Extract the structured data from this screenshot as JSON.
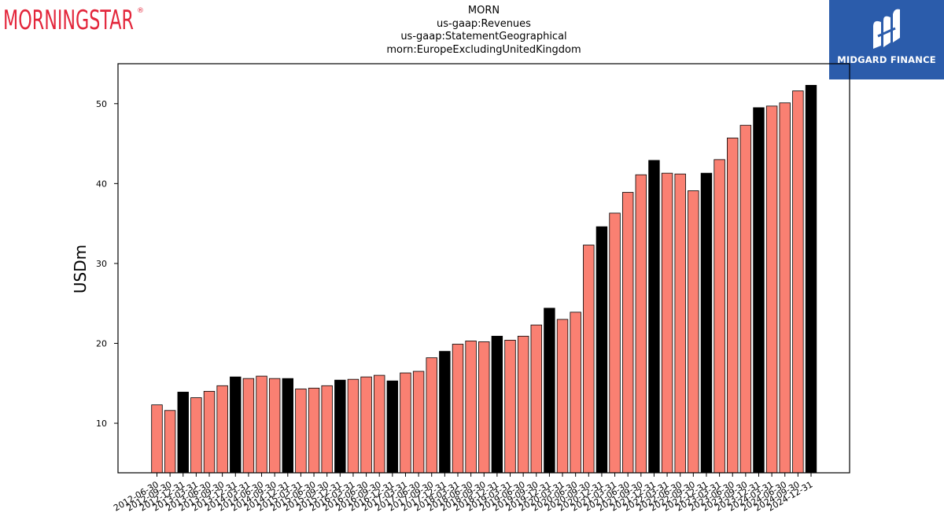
{
  "header": {
    "morningstar_logo": "MORNINGSTAR",
    "midgard_logo": "MIDGARD FINANCE"
  },
  "colors": {
    "bar_default": "#fa8072",
    "bar_highlight": "#000000",
    "morningstar_red": "#e3263b",
    "midgard_blue": "#2b5cab"
  },
  "chart_data": {
    "type": "bar",
    "title": [
      "MORN",
      "us-gaap:Revenues",
      "us-gaap:StatementGeographical",
      "morn:EuropeExcludingUnitedKingdom"
    ],
    "xlabel": "",
    "ylabel": "USDm",
    "ylim": [
      3.8,
      55
    ],
    "yticks": [
      10,
      20,
      30,
      40,
      50
    ],
    "grid": false,
    "categories": [
      "2012-06-30",
      "2012-09-30",
      "2012-12-31",
      "2013-03-31",
      "2013-06-30",
      "2013-09-30",
      "2013-12-31",
      "2014-03-31",
      "2014-06-30",
      "2014-09-30",
      "2014-12-31",
      "2015-03-31",
      "2015-06-30",
      "2015-09-30",
      "2015-12-31",
      "2016-03-31",
      "2016-06-30",
      "2016-09-30",
      "2016-12-31",
      "2017-03-31",
      "2017-06-30",
      "2017-09-30",
      "2017-12-31",
      "2018-03-31",
      "2018-06-30",
      "2018-09-30",
      "2018-12-31",
      "2019-03-31",
      "2019-06-30",
      "2019-09-30",
      "2019-12-31",
      "2020-03-31",
      "2020-06-30",
      "2020-09-30",
      "2020-12-31",
      "2021-03-31",
      "2021-06-30",
      "2021-09-30",
      "2021-12-31",
      "2022-03-31",
      "2022-06-30",
      "2022-09-30",
      "2022-12-31",
      "2023-03-31",
      "2023-06-30",
      "2023-09-30",
      "2023-12-31",
      "2024-03-31",
      "2024-06-30",
      "2024-09-30",
      "2024-12-31"
    ],
    "tick_labels": [
      "2012-06-30",
      "2012-09-30",
      "2012-12-31",
      "2013-03-31",
      "2013-06-30",
      "2013-09-30",
      "2013-12-31",
      "2014-03-31",
      "2014-06-30",
      "2014-09-30",
      "2014-12-31",
      "2015-03-31",
      "2015-06-30",
      "2015-09-30",
      "2015-12-31",
      "2016-03-31",
      "2016-06-30",
      "2016-09-30",
      "2016-12-31",
      "2017-03-31",
      "2017-06-30",
      "2017-09-30",
      "2017-12-31",
      "2018-03-31",
      "2018-06-30",
      "2018-09-30",
      "2018-12-31",
      "2019-03-31",
      "2019-06-30",
      "2019-09-30",
      "2019-12-31",
      "2020-03-31",
      "2020-06-30",
      "2020-09-30",
      "2020-12-31",
      "2021-03-31",
      "2021-06-30",
      "2021-09-30",
      "2021-12-31",
      "2022-03-31",
      "2022-06-30",
      "2022-09-30",
      "2022-12-31",
      "2023-03-31",
      "2023-06-30",
      "2023-09-30",
      "2023-12-31",
      "2024-03-31",
      "2024-06-30",
      "2024-09-30",
      "2024-12-31"
    ],
    "values": [
      12.3,
      11.6,
      13.9,
      13.2,
      14.0,
      14.7,
      15.8,
      15.6,
      15.9,
      15.6,
      15.6,
      14.3,
      14.4,
      14.7,
      15.4,
      15.5,
      15.8,
      16.0,
      15.3,
      16.3,
      16.5,
      18.2,
      19.0,
      19.9,
      20.3,
      20.2,
      20.9,
      20.4,
      20.9,
      22.3,
      24.4,
      23.0,
      23.9,
      32.3,
      34.6,
      36.3,
      38.9,
      41.1,
      42.9,
      41.3,
      41.2,
      39.1,
      41.3,
      43.0,
      45.7,
      47.3,
      49.5,
      49.7,
      50.1,
      51.6,
      52.3
    ],
    "highlighted": [
      false,
      false,
      true,
      false,
      false,
      false,
      true,
      false,
      false,
      false,
      true,
      false,
      false,
      false,
      true,
      false,
      false,
      false,
      true,
      false,
      false,
      false,
      true,
      false,
      false,
      false,
      true,
      false,
      false,
      false,
      true,
      false,
      false,
      false,
      true,
      false,
      false,
      false,
      true,
      false,
      false,
      false,
      true,
      false,
      false,
      false,
      true,
      false,
      false,
      false,
      true
    ]
  }
}
